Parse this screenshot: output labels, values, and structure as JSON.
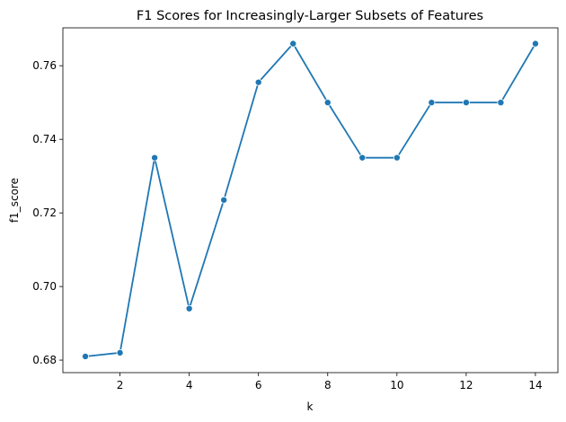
{
  "chart_data": {
    "type": "line",
    "title": "F1 Scores for Increasingly-Larger Subsets of Features",
    "xlabel": "k",
    "ylabel": "f1_score",
    "xlim": [
      0.35,
      14.65
    ],
    "ylim": [
      0.6766,
      0.7703
    ],
    "xticks": [
      2,
      4,
      6,
      8,
      10,
      12,
      14
    ],
    "yticks": [
      0.68,
      0.7,
      0.72,
      0.74,
      0.76
    ],
    "ytick_labels": [
      "0.68",
      "0.70",
      "0.72",
      "0.74",
      "0.76"
    ],
    "grid": false,
    "legend": "none",
    "series": [
      {
        "color": "#1f77b4",
        "marker": "circle",
        "x": [
          1,
          2,
          3,
          4,
          5,
          6,
          7,
          8,
          9,
          10,
          11,
          12,
          13,
          14
        ],
        "y": [
          0.681,
          0.682,
          0.735,
          0.694,
          0.7235,
          0.7555,
          0.766,
          0.75,
          0.735,
          0.735,
          0.75,
          0.75,
          0.75,
          0.766
        ]
      }
    ]
  }
}
